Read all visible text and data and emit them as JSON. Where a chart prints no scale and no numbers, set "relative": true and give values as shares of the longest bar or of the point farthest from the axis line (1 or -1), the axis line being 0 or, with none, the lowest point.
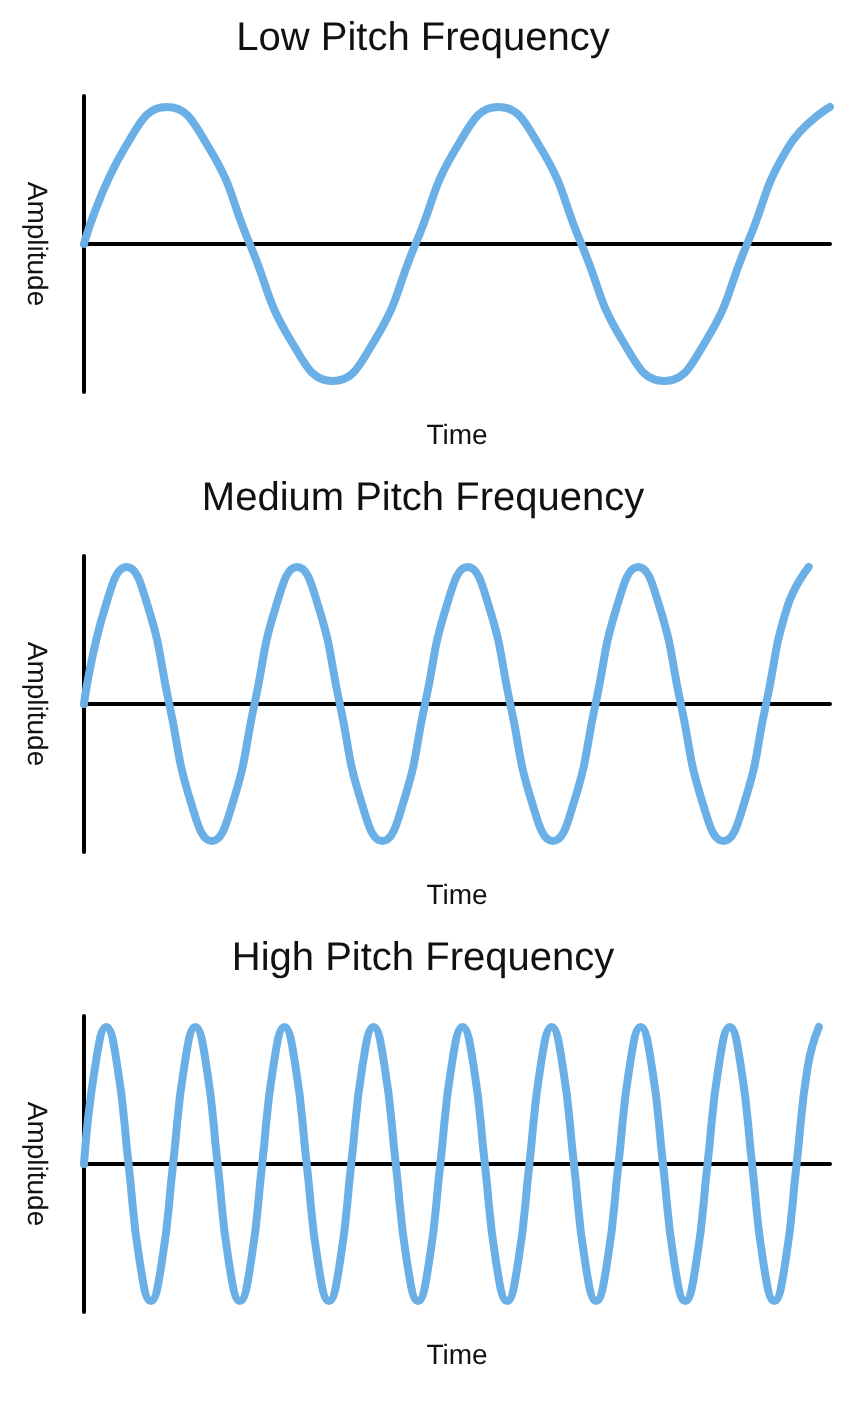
{
  "chart_data": [
    {
      "type": "line",
      "title": "Low Pitch Frequency",
      "xlabel": "Time",
      "ylabel": "Amplitude",
      "relative": true,
      "marker": "none",
      "line_style": "solid",
      "categories": [
        null,
        null,
        null,
        null,
        null,
        null,
        null,
        null,
        null,
        null,
        null,
        null,
        null,
        null,
        null,
        null,
        null,
        null,
        null
      ],
      "series": [
        {
          "color": "#6ab0e6",
          "values": [
            0,
            0.71,
            1,
            0.71,
            0,
            -0.71,
            -1,
            -0.71,
            0,
            0.71,
            1,
            0.71,
            0,
            -0.71,
            -1,
            -0.71,
            0,
            0.71,
            1
          ]
        }
      ]
    },
    {
      "type": "line",
      "title": "Medium Pitch Frequency",
      "xlabel": "Time",
      "ylabel": "Amplitude",
      "relative": true,
      "marker": "none",
      "line_style": "solid",
      "categories": [
        null,
        null,
        null,
        null,
        null,
        null,
        null,
        null,
        null,
        null,
        null,
        null,
        null,
        null,
        null,
        null,
        null,
        null,
        null,
        null,
        null,
        null,
        null,
        null,
        null,
        null,
        null,
        null,
        null,
        null,
        null,
        null,
        null,
        null,
        null,
        null
      ],
      "series": [
        {
          "color": "#6ab0e6",
          "values": [
            0,
            0.71,
            1,
            0.71,
            0,
            -0.71,
            -1,
            -0.71,
            0,
            0.71,
            1,
            0.71,
            0,
            -0.71,
            -1,
            -0.71,
            0,
            0.71,
            1,
            0.71,
            0,
            -0.71,
            -1,
            -0.71,
            0,
            0.71,
            1,
            0.71,
            0,
            -0.71,
            -1,
            -0.71,
            0,
            0.71,
            1,
            null
          ]
        }
      ]
    },
    {
      "type": "line",
      "title": "High Pitch Frequency",
      "xlabel": "Time",
      "ylabel": "Amplitude",
      "relative": true,
      "marker": "none",
      "line_style": "solid",
      "categories": [
        null,
        null,
        null,
        null,
        null,
        null,
        null,
        null,
        null,
        null,
        null,
        null,
        null,
        null,
        null,
        null,
        null,
        null,
        null,
        null,
        null,
        null,
        null,
        null,
        null,
        null,
        null,
        null,
        null,
        null,
        null,
        null,
        null,
        null,
        null,
        null,
        null,
        null,
        null,
        null,
        null,
        null,
        null,
        null,
        null,
        null,
        null,
        null,
        null,
        null,
        null,
        null,
        null,
        null,
        null,
        null,
        null,
        null,
        null,
        null,
        null,
        null,
        null,
        null,
        null,
        null,
        null,
        null
      ],
      "series": [
        {
          "color": "#6ab0e6",
          "values": [
            0,
            0.71,
            1,
            0.71,
            0,
            -0.71,
            -1,
            -0.71,
            0,
            0.71,
            1,
            0.71,
            0,
            -0.71,
            -1,
            -0.71,
            0,
            0.71,
            1,
            0.71,
            0,
            -0.71,
            -1,
            -0.71,
            0,
            0.71,
            1,
            0.71,
            0,
            -0.71,
            -1,
            -0.71,
            0,
            0.71,
            1,
            0.71,
            0,
            -0.71,
            -1,
            -0.71,
            0,
            0.71,
            1,
            0.71,
            0,
            -0.71,
            -1,
            -0.71,
            0,
            0.71,
            1,
            0.71,
            0,
            -0.71,
            -1,
            -0.71,
            0,
            0.71,
            1,
            0.71,
            0,
            -0.71,
            -1,
            -0.71,
            0,
            0.71,
            1,
            null
          ]
        }
      ]
    }
  ]
}
